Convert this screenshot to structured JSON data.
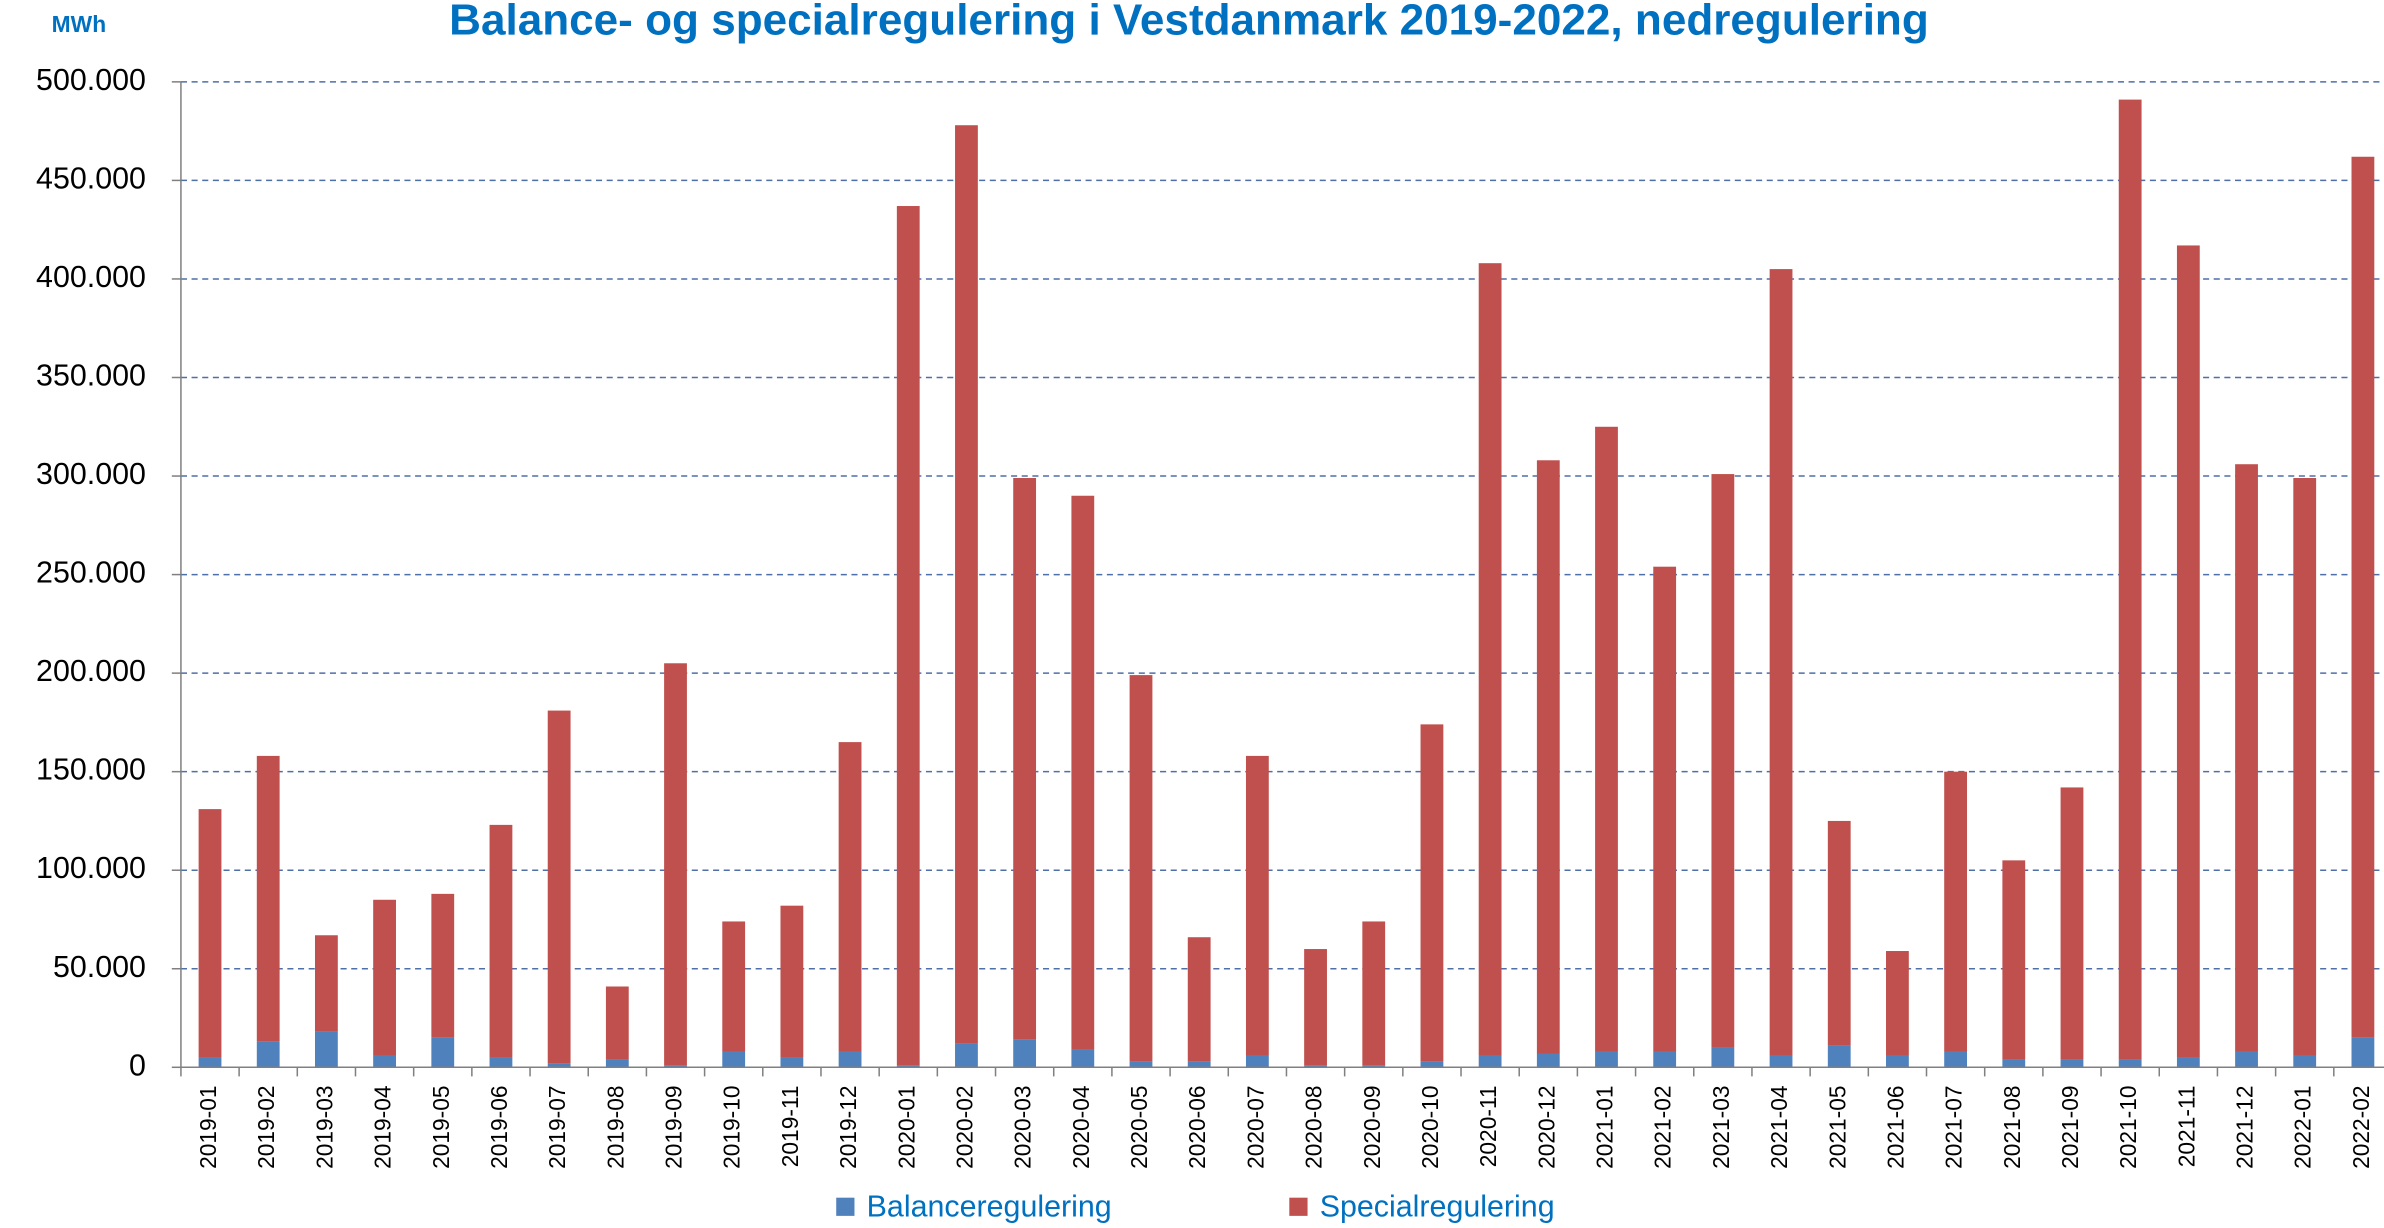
{
  "chart_data": {
    "type": "stacked_bar",
    "title": "Balance- og specialregulering i Vestdanmark 2019-2022, nedregulering",
    "y_label": "MWh",
    "categories": [
      "2019-01",
      "2019-02",
      "2019-03",
      "2019-04",
      "2019-05",
      "2019-06",
      "2019-07",
      "2019-08",
      "2019-09",
      "2019-10",
      "2019-11",
      "2019-12",
      "2020-01",
      "2020-02",
      "2020-03",
      "2020-04",
      "2020-05",
      "2020-06",
      "2020-07",
      "2020-08",
      "2020-09",
      "2020-10",
      "2020-11",
      "2020-12",
      "2021-01",
      "2021-02",
      "2021-03",
      "2021-04",
      "2021-05",
      "2021-06",
      "2021-07",
      "2021-08",
      "2021-09",
      "2021-10",
      "2021-11",
      "2021-12",
      "2022-01",
      "2022-02"
    ],
    "series": [
      {
        "name": "Balanceregulering",
        "color": "#4f81bd",
        "values": [
          5000,
          13000,
          18000,
          6000,
          15000,
          5000,
          2000,
          4000,
          1000,
          8000,
          5000,
          8000,
          1000,
          12000,
          14000,
          9000,
          3000,
          3000,
          6000,
          1000,
          1000,
          3000,
          6000,
          7000,
          8000,
          8000,
          10000,
          6000,
          11000,
          6000,
          8000,
          4000,
          4000,
          4000,
          5000,
          8000,
          6000,
          15000
        ]
      },
      {
        "name": "Specialregulering",
        "color": "#c0504d",
        "values": [
          126000,
          145000,
          49000,
          79000,
          73000,
          118000,
          179000,
          37000,
          204000,
          66000,
          77000,
          157000,
          436000,
          466000,
          285000,
          281000,
          196000,
          63000,
          152000,
          59000,
          73000,
          171000,
          402000,
          301000,
          317000,
          246000,
          291000,
          399000,
          114000,
          53000,
          142000,
          101000,
          138000,
          487000,
          412000,
          298000,
          293000,
          447000
        ]
      }
    ],
    "ylim": [
      0,
      500000
    ],
    "yticks": [
      0,
      {
        "value": 50000,
        "label": "50.000"
      },
      {
        "value": 100000,
        "label": "100.000"
      },
      {
        "value": 150000,
        "label": "150.000"
      },
      {
        "value": 200000,
        "label": "200.000"
      },
      {
        "value": 250000,
        "label": "250.000"
      },
      {
        "value": 300000,
        "label": "300.000"
      },
      {
        "value": 350000,
        "label": "350.000"
      },
      {
        "value": 400000,
        "label": "400.000"
      },
      {
        "value": 450000,
        "label": "450.000"
      },
      {
        "value": 500000,
        "label": "500.000"
      }
    ],
    "grid": true,
    "legend": "bottom"
  }
}
